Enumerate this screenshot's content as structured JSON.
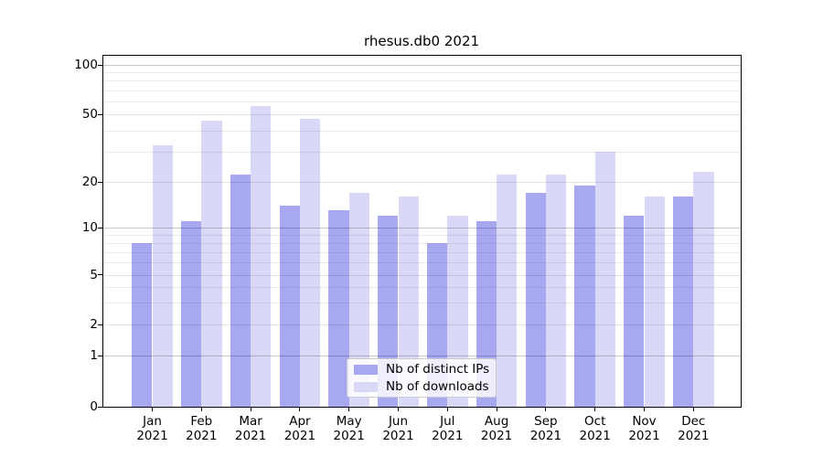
{
  "chart_data": {
    "type": "bar",
    "title": "rhesus.db0 2021",
    "categories": [
      "Jan",
      "Feb",
      "Mar",
      "Apr",
      "May",
      "Jun",
      "Jul",
      "Aug",
      "Sep",
      "Oct",
      "Nov",
      "Dec"
    ],
    "year_label": "2021",
    "series": [
      {
        "name": "Nb of distinct IPs",
        "color": "#a8a8f0",
        "values": [
          8,
          11,
          22,
          14,
          13,
          12,
          8,
          11,
          17,
          19,
          12,
          16
        ]
      },
      {
        "name": "Nb of downloads",
        "color": "#d9d9f7",
        "values": [
          33,
          46,
          56,
          47,
          17,
          16,
          12,
          22,
          22,
          30,
          16,
          23
        ]
      }
    ],
    "xlabel": "",
    "ylabel": "",
    "ylim": [
      0,
      115
    ],
    "y_scale": "log-like (symlog, linear below 1)",
    "y_major_ticks": [
      100,
      50,
      20,
      10,
      5,
      2,
      1,
      0
    ],
    "y_decade_gridlines": [
      1,
      10,
      100
    ],
    "y_minor_gridlines": [
      3,
      4,
      6,
      7,
      8,
      9,
      30,
      40,
      60,
      70,
      80,
      90
    ],
    "grid": true,
    "legend_position": "lower center"
  },
  "colors": {
    "background": "#ffffff",
    "axis": "#000000",
    "grid_major": "#c8c8c8",
    "grid_minor": "#ebebeb",
    "grid_sub": "#e2e2e2",
    "bar_distinct_ips": "#a8a8f0",
    "bar_downloads": "#d9d9f7",
    "legend_border": "#cccccc"
  }
}
